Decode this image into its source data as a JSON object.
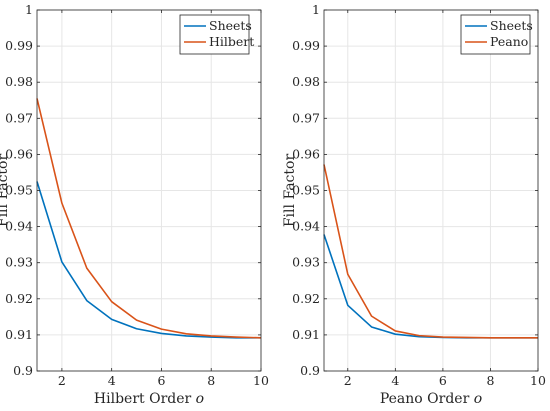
{
  "colors": {
    "sheets": "#0072BD",
    "curve": "#D95319",
    "grid": "#e6e6e6",
    "axis": "#262626"
  },
  "chart_data": [
    {
      "type": "line",
      "xlabel": "Hilbert Order o",
      "ylabel": "Fill Factor",
      "xlim": [
        1,
        10
      ],
      "ylim": [
        0.9,
        1.0
      ],
      "xticks": [
        2,
        4,
        6,
        8,
        10
      ],
      "yticks": [
        0.9,
        0.91,
        0.92,
        0.93,
        0.94,
        0.95,
        0.96,
        0.97,
        0.98,
        0.99,
        1
      ],
      "ytick_labels": [
        "0.9",
        "0.91",
        "0.92",
        "0.93",
        "0.94",
        "0.95",
        "0.96",
        "0.97",
        "0.98",
        "0.99",
        "1"
      ],
      "grid": true,
      "legend": "top-right",
      "x": [
        1,
        2,
        3,
        4,
        5,
        6,
        7,
        8,
        9,
        10
      ],
      "series": [
        {
          "name": "Sheets",
          "color": "#0072BD",
          "values": [
            0.9525,
            0.9302,
            0.9195,
            0.9143,
            0.9117,
            0.9104,
            0.9097,
            0.9094,
            0.9092,
            0.9092
          ]
        },
        {
          "name": "Hilbert",
          "color": "#D95319",
          "values": [
            0.9755,
            0.9465,
            0.9285,
            0.9192,
            0.9141,
            0.9116,
            0.9103,
            0.9097,
            0.9094,
            0.9092
          ]
        }
      ]
    },
    {
      "type": "line",
      "xlabel": "Peano Order o",
      "ylabel": "Fill Factor",
      "xlim": [
        1,
        10
      ],
      "ylim": [
        0.9,
        1.0
      ],
      "xticks": [
        2,
        4,
        6,
        8,
        10
      ],
      "yticks": [
        0.9,
        0.91,
        0.92,
        0.93,
        0.94,
        0.95,
        0.96,
        0.97,
        0.98,
        0.99,
        1
      ],
      "ytick_labels": [
        "0.9",
        "0.91",
        "0.92",
        "0.93",
        "0.94",
        "0.95",
        "0.96",
        "0.97",
        "0.98",
        "0.99",
        "1"
      ],
      "grid": true,
      "legend": "top-right",
      "x": [
        1,
        2,
        3,
        4,
        5,
        6,
        7,
        8,
        9,
        10
      ],
      "series": [
        {
          "name": "Sheets",
          "color": "#0072BD",
          "values": [
            0.9378,
            0.9182,
            0.9122,
            0.9102,
            0.9095,
            0.9093,
            0.9092,
            0.9092,
            0.9092,
            0.9092
          ]
        },
        {
          "name": "Peano",
          "color": "#D95319",
          "values": [
            0.9572,
            0.9268,
            0.9152,
            0.9111,
            0.9098,
            0.9094,
            0.9093,
            0.9092,
            0.9092,
            0.9092
          ]
        }
      ]
    }
  ]
}
